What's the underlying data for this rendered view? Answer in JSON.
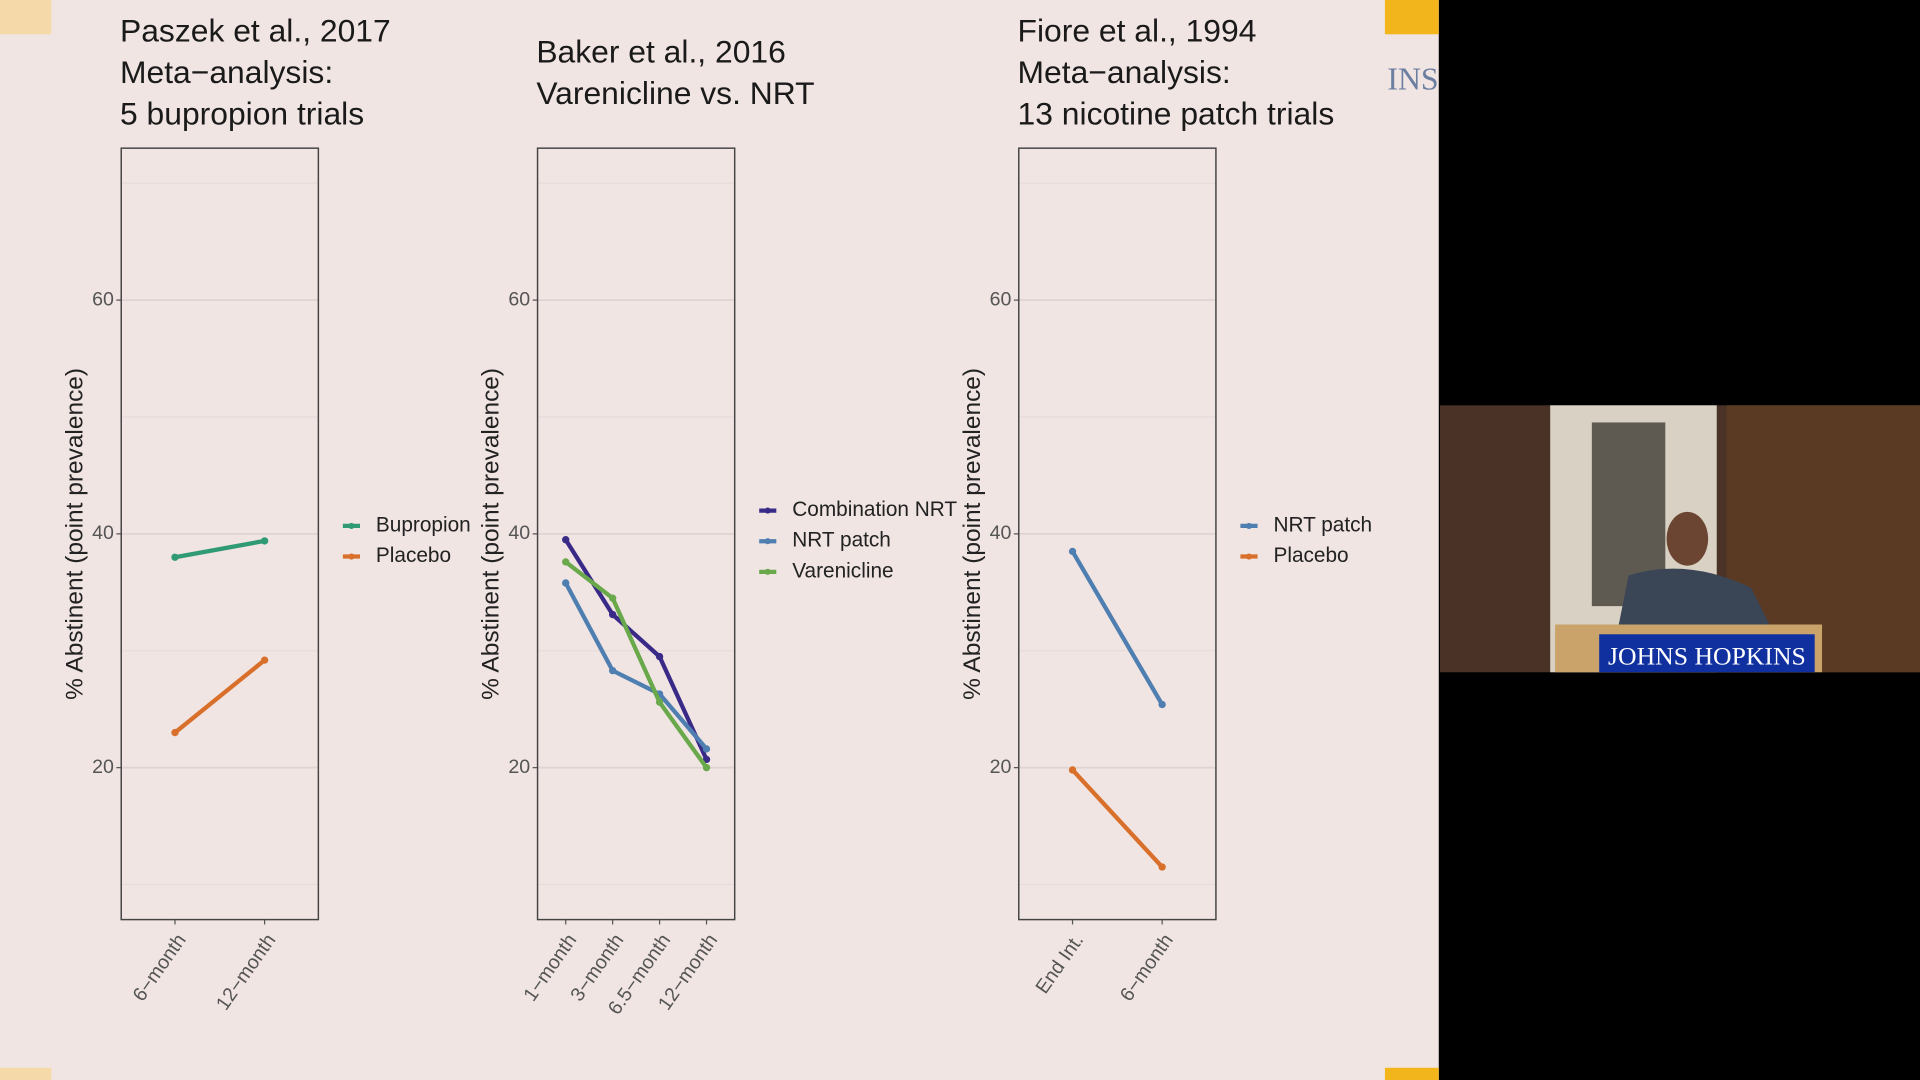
{
  "chart_data": [
    {
      "type": "line",
      "title": [
        "Paszek et al., 2017",
        "Meta−analysis:",
        "5 bupropion trials"
      ],
      "ylabel": "% Abstinent (point prevalence)",
      "categories": [
        "6−month",
        "12−month"
      ],
      "series": [
        {
          "name": "Bupropion",
          "color": "#2f9a74",
          "values": [
            38.0,
            39.4
          ]
        },
        {
          "name": "Placebo",
          "color": "#d8702c",
          "values": [
            23.0,
            29.2
          ]
        }
      ],
      "ylim": [
        7,
        73
      ],
      "yticks": [
        20,
        40,
        60
      ],
      "yminor": [
        10,
        30,
        50,
        70
      ],
      "grid": true,
      "legend": "right"
    },
    {
      "type": "line",
      "title": [
        "Baker et al., 2016",
        "Varenicline vs. NRT"
      ],
      "ylabel": "% Abstinent (point prevalence)",
      "categories": [
        "1−month",
        "3−month",
        "6.5−month",
        "12−month"
      ],
      "series": [
        {
          "name": "Combination NRT",
          "color": "#3a2a88",
          "values": [
            39.5,
            33.1,
            29.5,
            20.7
          ]
        },
        {
          "name": "NRT patch",
          "color": "#4f7fb0",
          "values": [
            35.8,
            28.3,
            26.3,
            21.6
          ]
        },
        {
          "name": "Varenicline",
          "color": "#6aa84c",
          "values": [
            37.6,
            34.5,
            25.6,
            20.0
          ]
        }
      ],
      "ylim": [
        7,
        73
      ],
      "yticks": [
        20,
        40,
        60
      ],
      "yminor": [
        10,
        30,
        50,
        70
      ],
      "grid": true,
      "legend": "right"
    },
    {
      "type": "line",
      "title": [
        "Fiore et al., 1994",
        "Meta−analysis:",
        "13 nicotine patch trials"
      ],
      "ylabel": "% Abstinent (point prevalence)",
      "categories": [
        "End Int.",
        "6−month"
      ],
      "series": [
        {
          "name": "NRT patch",
          "color": "#4f7fb0",
          "values": [
            38.5,
            25.4
          ]
        },
        {
          "name": "Placebo",
          "color": "#d8702c",
          "values": [
            19.8,
            11.5
          ]
        }
      ],
      "ylim": [
        7,
        73
      ],
      "yticks": [
        20,
        40,
        60
      ],
      "yminor": [
        10,
        30,
        50,
        70
      ],
      "grid": true,
      "legend": "right"
    }
  ],
  "video": {
    "slide_fragment": "INS",
    "podium": "JOHNS HOPKINS"
  }
}
